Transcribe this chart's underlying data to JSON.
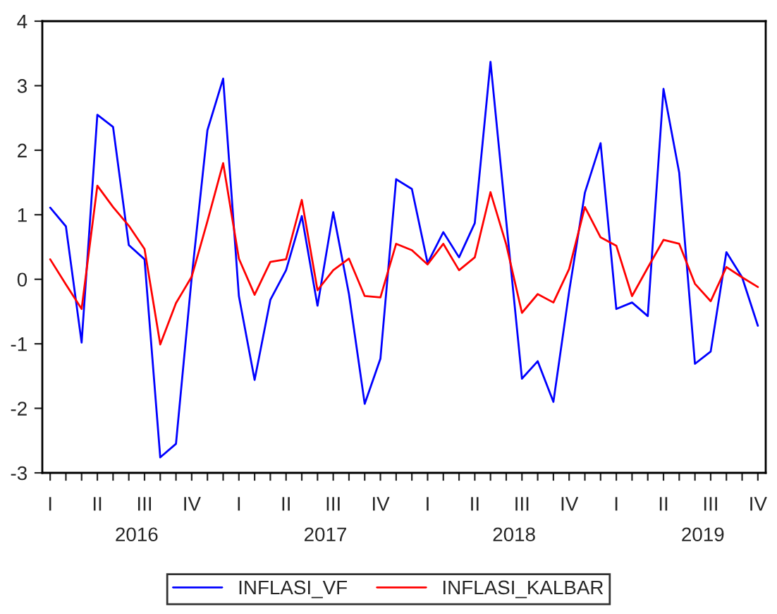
{
  "chart_data": {
    "type": "line",
    "categories": [
      "I",
      null,
      null,
      "II",
      null,
      null,
      "III",
      null,
      null,
      "IV",
      null,
      null,
      "I",
      null,
      null,
      "II",
      null,
      null,
      "III",
      null,
      null,
      "IV",
      null,
      null,
      "I",
      null,
      null,
      "II",
      null,
      null,
      "III",
      null,
      null,
      "IV",
      null,
      null,
      "I",
      null,
      null,
      "II",
      null,
      null,
      "III",
      null,
      null,
      "IV"
    ],
    "series": [
      {
        "name": "INFLASI_VF",
        "color": "#0000ff",
        "values": [
          1.11,
          0.82,
          -0.98,
          2.55,
          2.36,
          0.53,
          0.31,
          -2.76,
          -2.55,
          0.03,
          2.31,
          3.11,
          -0.26,
          -1.56,
          -0.32,
          0.14,
          0.98,
          -0.41,
          1.04,
          -0.23,
          -1.93,
          -1.23,
          1.55,
          1.4,
          0.25,
          0.73,
          0.34,
          0.87,
          3.37,
          0.9,
          -1.54,
          -1.27,
          -1.9,
          -0.19,
          1.34,
          2.11,
          -0.46,
          -0.36,
          -0.57,
          2.95,
          1.65,
          -1.31,
          -1.12,
          0.42,
          0.03,
          -0.72
        ]
      },
      {
        "name": "INFLASI_KALBAR",
        "color": "#ff0000",
        "values": [
          0.31,
          -0.08,
          -0.46,
          1.45,
          1.12,
          0.83,
          0.47,
          -1.01,
          -0.37,
          0.04,
          0.9,
          1.8,
          0.32,
          -0.24,
          0.27,
          0.31,
          1.23,
          -0.17,
          0.14,
          0.32,
          -0.26,
          -0.28,
          0.55,
          0.45,
          0.23,
          0.55,
          0.14,
          0.34,
          1.35,
          0.54,
          -0.52,
          -0.23,
          -0.36,
          0.16,
          1.12,
          0.65,
          0.52,
          -0.26,
          0.18,
          0.61,
          0.55,
          -0.07,
          -0.34,
          0.19,
          0.03,
          -0.12
        ]
      }
    ],
    "annotations": [
      "2016",
      "2017",
      "2018",
      "2019"
    ],
    "ylim": [
      -3,
      4
    ],
    "yticks": [
      -3,
      -2,
      -1,
      0,
      1,
      2,
      3,
      4
    ],
    "grid": false,
    "legend": "bottom",
    "line_style": "solid",
    "marker": "none"
  }
}
